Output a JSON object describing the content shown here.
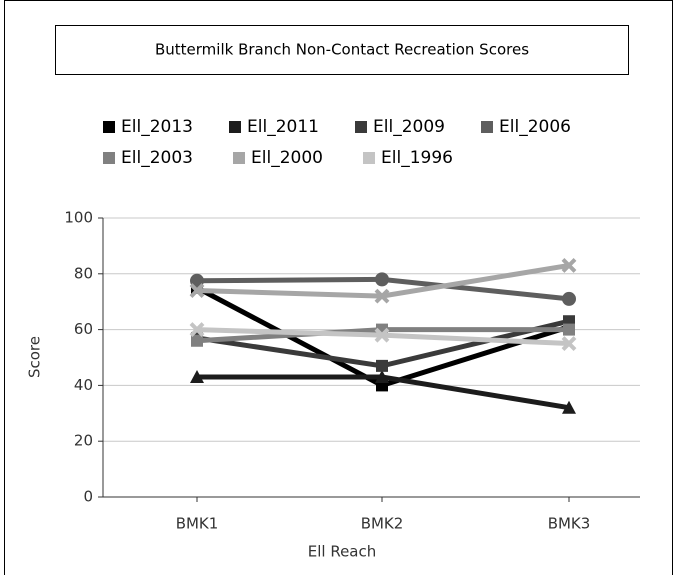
{
  "chart_data": {
    "type": "line",
    "title": "Buttermilk Branch Non-Contact Recreation Scores",
    "x_label": "Ell Reach",
    "y_label": "Score",
    "categories": [
      "BMK1",
      "BMK2",
      "BMK3"
    ],
    "series": [
      {
        "name": "Ell_2013",
        "color": "#000000",
        "marker": "square",
        "values": [
          75,
          40,
          61
        ]
      },
      {
        "name": "Ell_2011",
        "color": "#1c1c1c",
        "marker": "triangle",
        "values": [
          43,
          43,
          32
        ]
      },
      {
        "name": "Ell_2009",
        "color": "#3a3a3a",
        "marker": "square",
        "values": [
          57,
          47,
          63
        ]
      },
      {
        "name": "Ell_2006",
        "color": "#5e5e5e",
        "marker": "circle",
        "values": [
          77.5,
          78,
          71
        ]
      },
      {
        "name": "Ell_2003",
        "color": "#808080",
        "marker": "square",
        "values": [
          56,
          60,
          60
        ]
      },
      {
        "name": "Ell_2000",
        "color": "#a6a6a6",
        "marker": "x",
        "values": [
          74,
          72,
          83
        ]
      },
      {
        "name": "Ell_1996",
        "color": "#c4c4c4",
        "marker": "x",
        "values": [
          60,
          58,
          55
        ]
      }
    ],
    "ylim": [
      0,
      100
    ],
    "yticks": [
      0,
      20,
      40,
      60,
      80,
      100
    ],
    "grid": true
  }
}
